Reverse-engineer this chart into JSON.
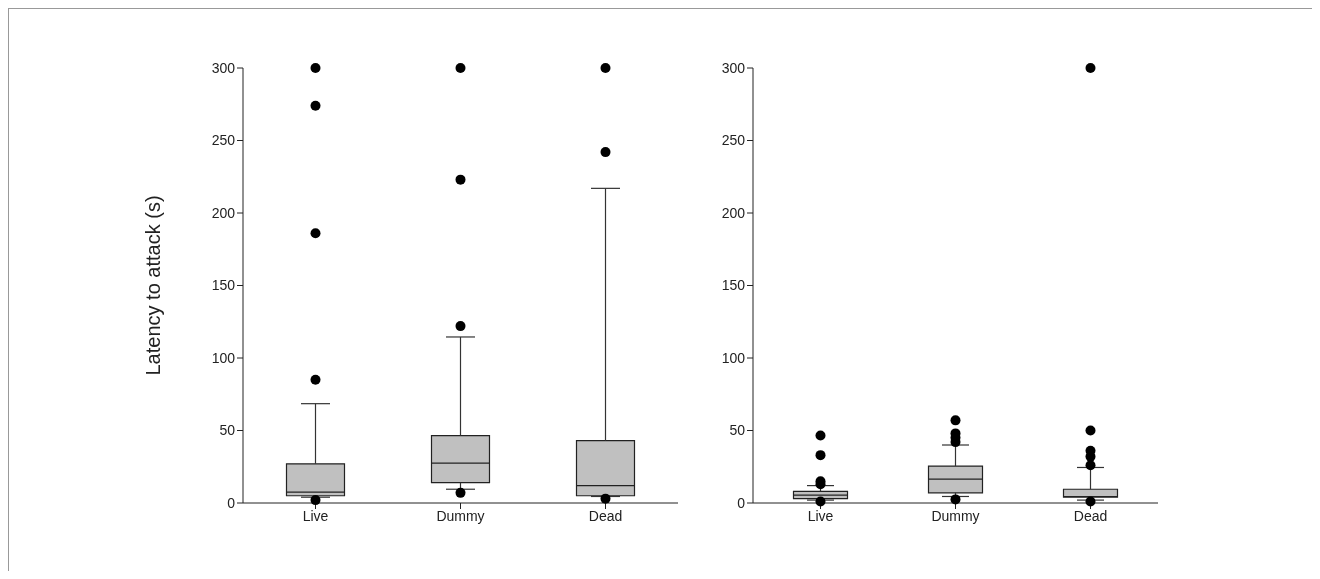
{
  "chart_data": [
    {
      "type": "box",
      "ylabel": "Latency to attack (s)",
      "categories": [
        "Live",
        "Dummy",
        "Dead"
      ],
      "color": "#c0c0c0",
      "ylim": [
        0,
        300
      ],
      "yticks": [
        0,
        50,
        100,
        150,
        200,
        250,
        300
      ],
      "grid": false,
      "marker": "circle",
      "boxes": [
        {
          "low": 4,
          "q1": 5,
          "median": 7.5,
          "q3": 27,
          "high": 68.5,
          "outliers": [
            2,
            85,
            186,
            274,
            300
          ]
        },
        {
          "low": 9.5,
          "q1": 14,
          "median": 27.5,
          "q3": 46.5,
          "high": 114.5,
          "outliers": [
            7,
            122,
            223,
            300
          ]
        },
        {
          "low": 4.5,
          "q1": 5,
          "median": 12,
          "q3": 43,
          "high": 217,
          "outliers": [
            3,
            242,
            300
          ]
        }
      ]
    },
    {
      "type": "box",
      "categories": [
        "Live",
        "Dummy",
        "Dead"
      ],
      "color": "#c0c0c0",
      "ylim": [
        0,
        300
      ],
      "yticks": [
        0,
        50,
        100,
        150,
        200,
        250,
        300
      ],
      "grid": false,
      "marker": "circle",
      "boxes": [
        {
          "low": 2,
          "q1": 3,
          "median": 5.5,
          "q3": 8,
          "high": 12,
          "outliers": [
            1,
            13,
            15,
            33,
            46.5
          ]
        },
        {
          "low": 4.5,
          "q1": 7,
          "median": 16.5,
          "q3": 25.5,
          "high": 40,
          "outliers": [
            2.5,
            42,
            45,
            48,
            57
          ]
        },
        {
          "low": 2,
          "q1": 4,
          "median": 4.5,
          "q3": 9.5,
          "high": 24.5,
          "outliers": [
            1,
            26,
            32,
            36,
            50,
            300
          ]
        }
      ]
    }
  ]
}
